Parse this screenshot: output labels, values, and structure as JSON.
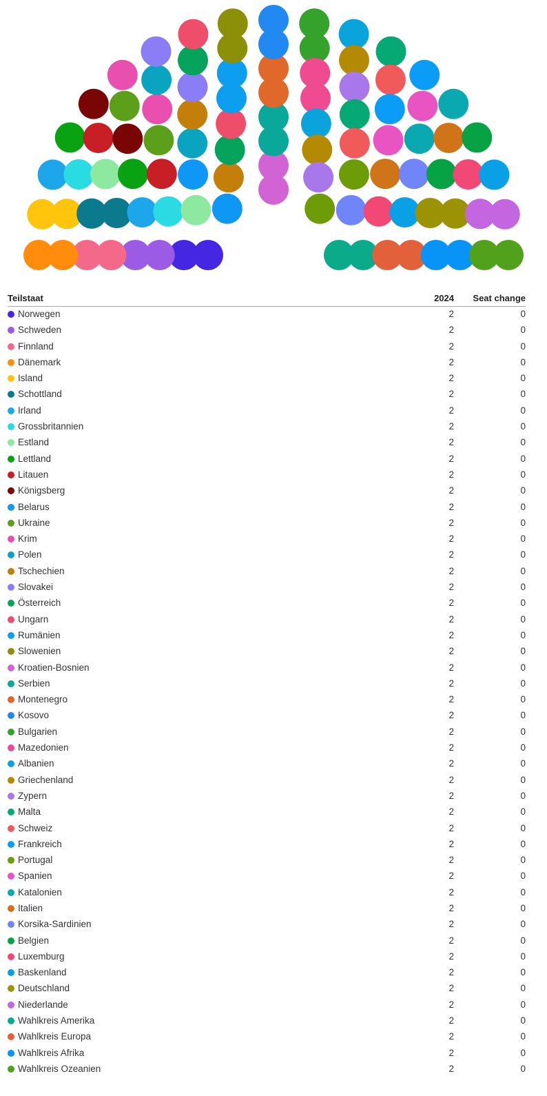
{
  "table": {
    "header": {
      "name": "Teilstaat",
      "year": "2024",
      "change": "Seat change"
    }
  },
  "chart_data": {
    "type": "parliament",
    "title": "",
    "series": [
      {
        "name": "Norwegen",
        "seats": 2,
        "change": 0,
        "color": "#4527e3"
      },
      {
        "name": "Schweden",
        "seats": 2,
        "change": 0,
        "color": "#9b5be4"
      },
      {
        "name": "Finnland",
        "seats": 2,
        "change": 0,
        "color": "#f4688a"
      },
      {
        "name": "Dänemark",
        "seats": 2,
        "change": 0,
        "color": "#ff8c0d"
      },
      {
        "name": "Island",
        "seats": 2,
        "change": 0,
        "color": "#ffc40c"
      },
      {
        "name": "Schottland",
        "seats": 2,
        "change": 0,
        "color": "#0b7a8c"
      },
      {
        "name": "Irland",
        "seats": 2,
        "change": 0,
        "color": "#1ea6ea"
      },
      {
        "name": "Grossbritannien",
        "seats": 2,
        "change": 0,
        "color": "#2bdbe3"
      },
      {
        "name": "Estland",
        "seats": 2,
        "change": 0,
        "color": "#8de8a0"
      },
      {
        "name": "Lettland",
        "seats": 2,
        "change": 0,
        "color": "#08a212"
      },
      {
        "name": "Litauen",
        "seats": 2,
        "change": 0,
        "color": "#c81e25"
      },
      {
        "name": "Königsberg",
        "seats": 2,
        "change": 0,
        "color": "#7a0505"
      },
      {
        "name": "Belarus",
        "seats": 2,
        "change": 0,
        "color": "#0f97f5"
      },
      {
        "name": "Ukraine",
        "seats": 2,
        "change": 0,
        "color": "#5c9f1a"
      },
      {
        "name": "Krim",
        "seats": 2,
        "change": 0,
        "color": "#e84fae"
      },
      {
        "name": "Polen",
        "seats": 2,
        "change": 0,
        "color": "#0ba4c0"
      },
      {
        "name": "Tschechien",
        "seats": 2,
        "change": 0,
        "color": "#c47f0a"
      },
      {
        "name": "Slovakei",
        "seats": 2,
        "change": 0,
        "color": "#8b7df5"
      },
      {
        "name": "Österreich",
        "seats": 2,
        "change": 0,
        "color": "#06a35d"
      },
      {
        "name": "Ungarn",
        "seats": 2,
        "change": 0,
        "color": "#ef4e6a"
      },
      {
        "name": "Rumänien",
        "seats": 2,
        "change": 0,
        "color": "#0e9ef0"
      },
      {
        "name": "Slowenien",
        "seats": 2,
        "change": 0,
        "color": "#8c8f08"
      },
      {
        "name": "Kroatien-Bosnien",
        "seats": 2,
        "change": 0,
        "color": "#d263d4"
      },
      {
        "name": "Serbien",
        "seats": 2,
        "change": 0,
        "color": "#0aa89a"
      },
      {
        "name": "Montenegro",
        "seats": 2,
        "change": 0,
        "color": "#e0682b"
      },
      {
        "name": "Kosovo",
        "seats": 2,
        "change": 0,
        "color": "#2288f2"
      },
      {
        "name": "Bulgarien",
        "seats": 2,
        "change": 0,
        "color": "#35a22c"
      },
      {
        "name": "Mazedonien",
        "seats": 2,
        "change": 0,
        "color": "#f04a90"
      },
      {
        "name": "Albanien",
        "seats": 2,
        "change": 0,
        "color": "#0aa3dc"
      },
      {
        "name": "Griechenland",
        "seats": 2,
        "change": 0,
        "color": "#b48a05"
      },
      {
        "name": "Zypern",
        "seats": 2,
        "change": 0,
        "color": "#a878ea"
      },
      {
        "name": "Malta",
        "seats": 2,
        "change": 0,
        "color": "#06a874"
      },
      {
        "name": "Schweiz",
        "seats": 2,
        "change": 0,
        "color": "#f05a5a"
      },
      {
        "name": "Frankreich",
        "seats": 2,
        "change": 0,
        "color": "#0a9cf6"
      },
      {
        "name": "Portugal",
        "seats": 2,
        "change": 0,
        "color": "#6e9c08"
      },
      {
        "name": "Spanien",
        "seats": 2,
        "change": 0,
        "color": "#e854c2"
      },
      {
        "name": "Katalonien",
        "seats": 2,
        "change": 0,
        "color": "#0aa8b0"
      },
      {
        "name": "Italien",
        "seats": 2,
        "change": 0,
        "color": "#cf7418"
      },
      {
        "name": "Korsika-Sardinien",
        "seats": 2,
        "change": 0,
        "color": "#7086f8"
      },
      {
        "name": "Belgien",
        "seats": 2,
        "change": 0,
        "color": "#07a244"
      },
      {
        "name": "Luxemburg",
        "seats": 2,
        "change": 0,
        "color": "#f24876"
      },
      {
        "name": "Baskenland",
        "seats": 2,
        "change": 0,
        "color": "#0aa0e6"
      },
      {
        "name": "Deutschland",
        "seats": 2,
        "change": 0,
        "color": "#9b9206"
      },
      {
        "name": "Niederlande",
        "seats": 2,
        "change": 0,
        "color": "#c466e0"
      },
      {
        "name": "Wahlkreis Amerika",
        "seats": 2,
        "change": 0,
        "color": "#0aaa8a"
      },
      {
        "name": "Wahlkreis Europa",
        "seats": 2,
        "change": 0,
        "color": "#e2603a"
      },
      {
        "name": "Wahlkreis Afrika",
        "seats": 2,
        "change": 0,
        "color": "#0894f6"
      },
      {
        "name": "Wahlkreis Ozeanien",
        "seats": 2,
        "change": 0,
        "color": "#52a11c"
      }
    ]
  }
}
